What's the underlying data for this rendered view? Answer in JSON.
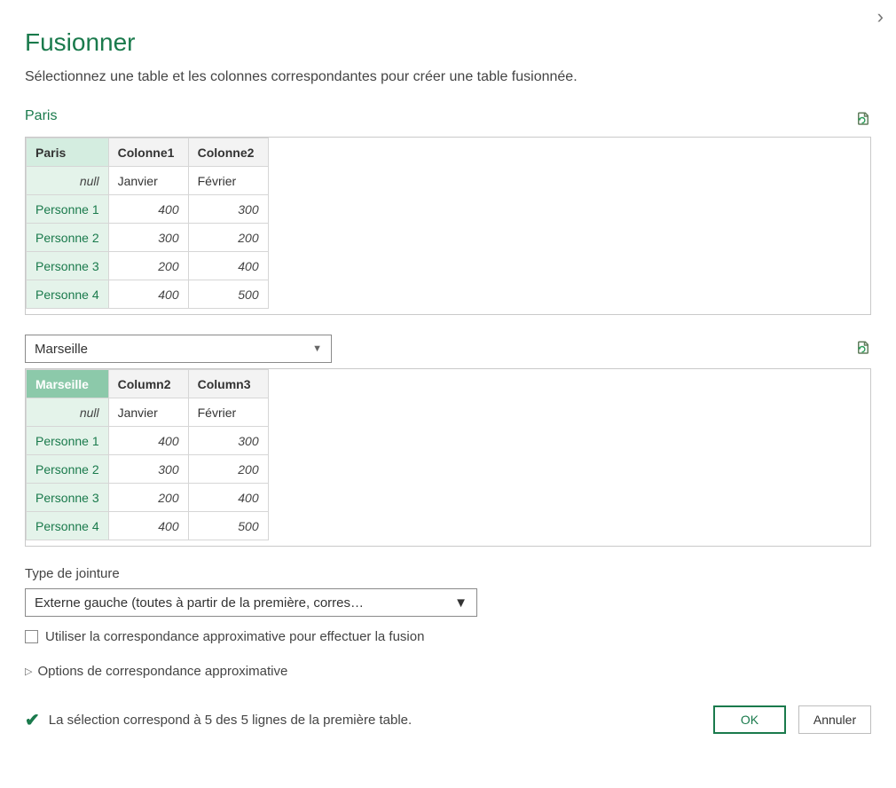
{
  "dialog": {
    "title": "Fusionner",
    "subtitle": "Sélectionnez une table et les colonnes correspondantes pour créer une table fusionnée.",
    "close_glyph": "›"
  },
  "table1": {
    "source_label": "Paris",
    "columns": [
      "Paris",
      "Colonne1",
      "Colonne2"
    ],
    "key_column_index": 0,
    "key_selected": false,
    "rows": [
      [
        "null",
        "Janvier",
        "Février"
      ],
      [
        "Personne 1",
        400,
        300
      ],
      [
        "Personne 2",
        300,
        200
      ],
      [
        "Personne 3",
        200,
        400
      ],
      [
        "Personne 4",
        400,
        500
      ]
    ]
  },
  "table2": {
    "source_label": "Marseille",
    "is_dropdown": true,
    "columns": [
      "Marseille",
      "Column2",
      "Column3"
    ],
    "key_column_index": 0,
    "key_selected": true,
    "rows": [
      [
        "null",
        "Janvier",
        "Février"
      ],
      [
        "Personne 1",
        400,
        300
      ],
      [
        "Personne 2",
        300,
        200
      ],
      [
        "Personne 3",
        200,
        400
      ],
      [
        "Personne 4",
        400,
        500
      ]
    ]
  },
  "join": {
    "label": "Type de jointure",
    "selected": "Externe gauche (toutes à partir de la première, corres…"
  },
  "fuzzy": {
    "checkbox_label": "Utiliser la correspondance approximative pour effectuer la fusion",
    "checked": false,
    "expander_label": "Options de correspondance approximative"
  },
  "status": {
    "icon": "✔",
    "text": "La sélection correspond à 5 des 5 lignes de la première table."
  },
  "buttons": {
    "ok": "OK",
    "cancel": "Annuler"
  },
  "colors": {
    "accent": "#1a7a4c",
    "key_header_bg": "#d4ede0",
    "key_header_selected_bg": "#8cc9aa",
    "key_cell_bg": "#e4f3ea",
    "border": "#c9c9c9"
  }
}
